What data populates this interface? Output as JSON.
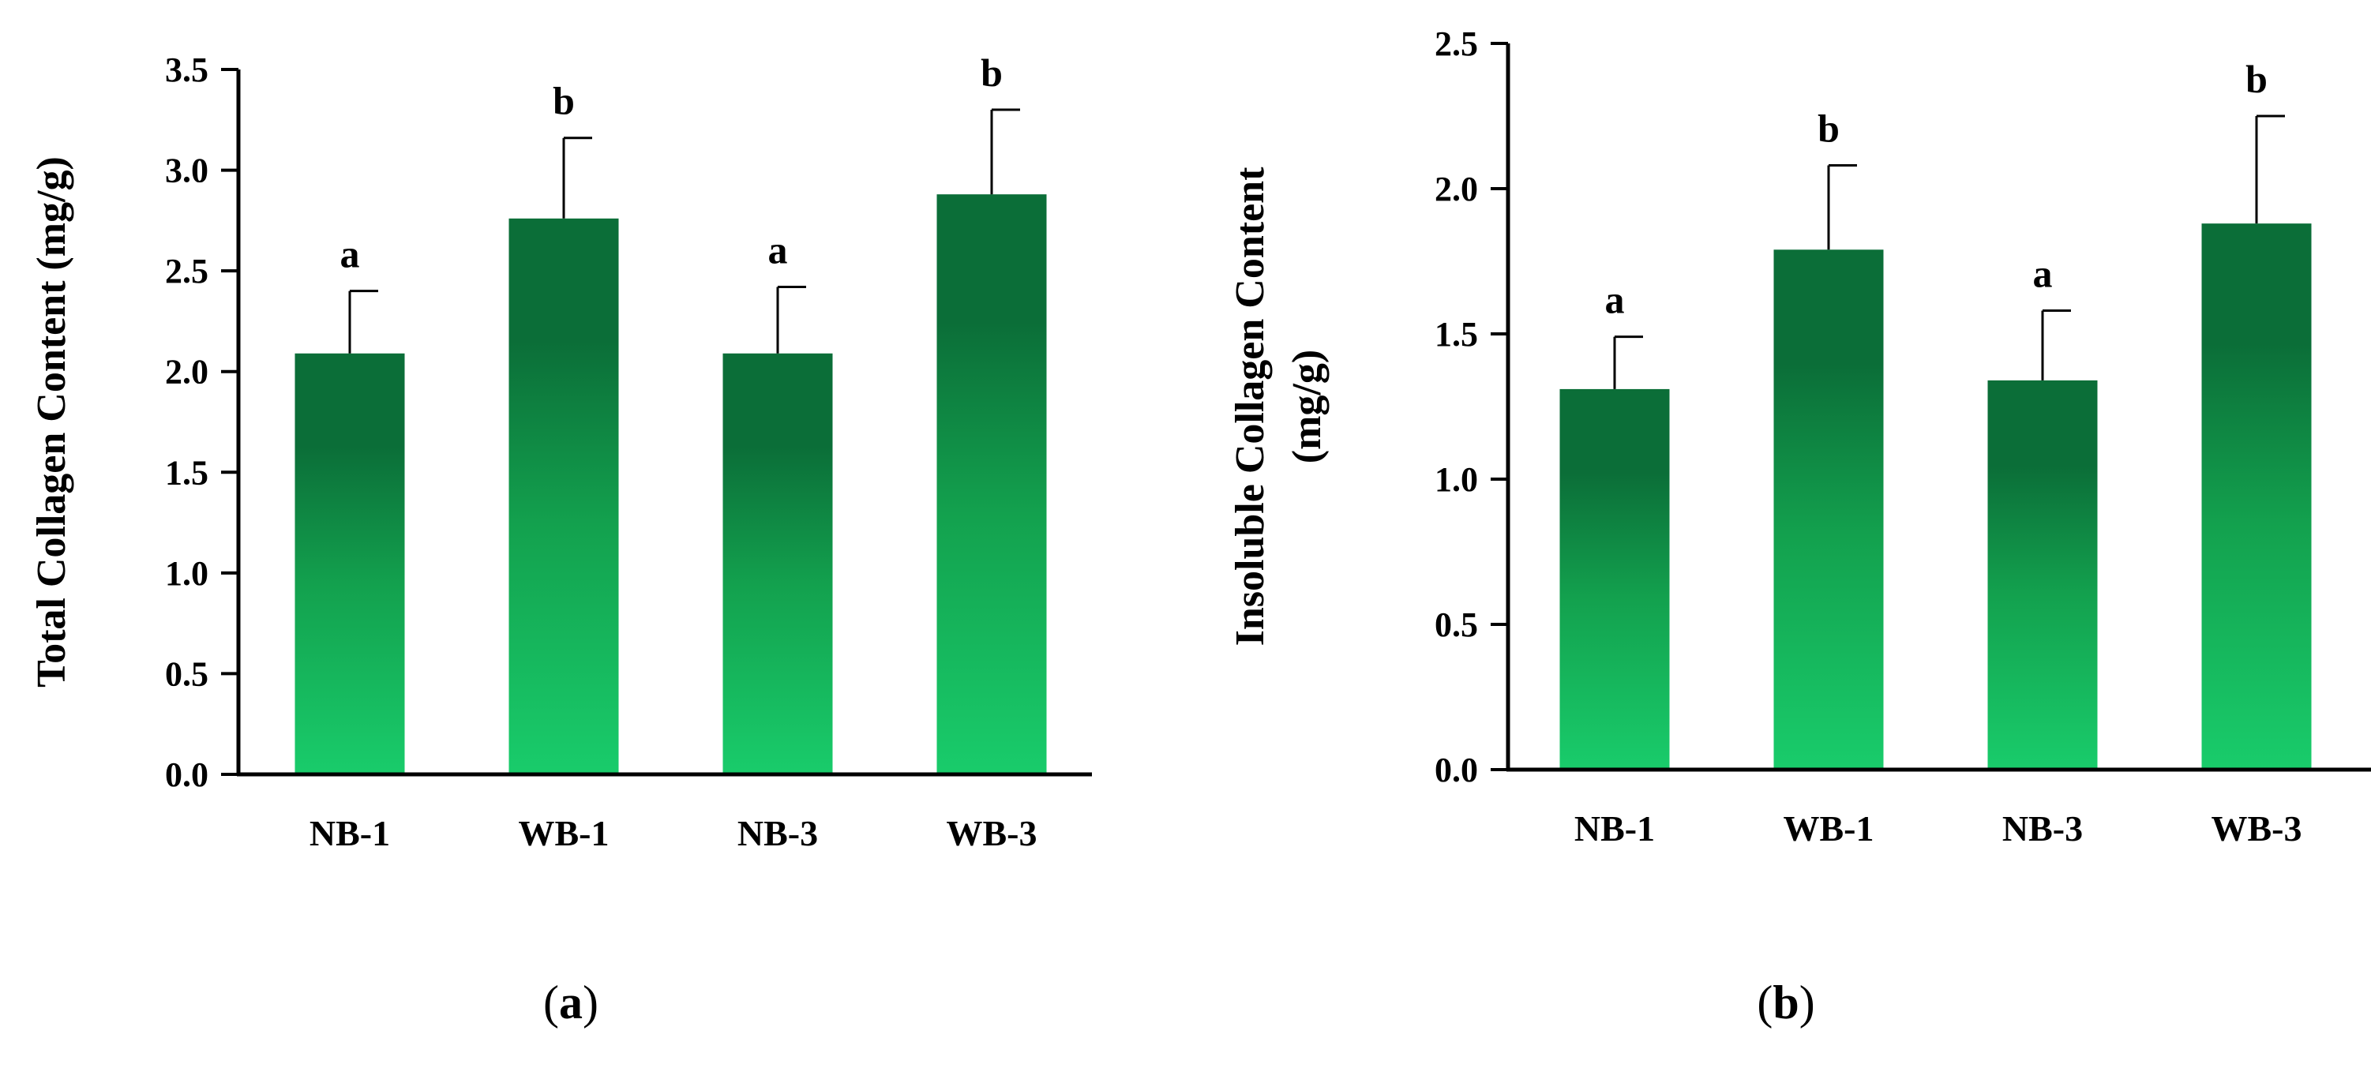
{
  "colors": {
    "bar_top": "#0b6e38",
    "bar_mid": "#13a14e",
    "bar_bottom": "#19cc6b",
    "axis": "#000000"
  },
  "chart_data": [
    {
      "type": "bar",
      "panel": "(a)",
      "panel_letter": "a",
      "categories": [
        "NB-1",
        "WB-1",
        "NB-3",
        "WB-3"
      ],
      "values": [
        2.09,
        2.76,
        2.09,
        2.88
      ],
      "errors": [
        0.31,
        0.4,
        0.33,
        0.42
      ],
      "significance": [
        "a",
        "b",
        "a",
        "b"
      ],
      "ylabel": "Total Collagen Content (mg/g)",
      "ylabel_lines": [
        "Total Collagen Content (mg/g)"
      ],
      "ylim": [
        0,
        3.5
      ],
      "yticks": [
        "0.0",
        "0.5",
        "1.0",
        "1.5",
        "2.0",
        "2.5",
        "3.0",
        "3.5"
      ],
      "grid": false
    },
    {
      "type": "bar",
      "panel": "(b)",
      "panel_letter": "b",
      "categories": [
        "NB-1",
        "WB-1",
        "NB-3",
        "WB-3"
      ],
      "values": [
        1.31,
        1.79,
        1.34,
        1.88
      ],
      "errors": [
        0.18,
        0.29,
        0.24,
        0.37
      ],
      "significance": [
        "a",
        "b",
        "a",
        "b"
      ],
      "ylabel": "Insoluble Collagen Content (mg/g)",
      "ylabel_lines": [
        "Insoluble Collagen Content",
        "(mg/g)"
      ],
      "ylim": [
        0,
        2.5
      ],
      "yticks": [
        "0.0",
        "0.5",
        "1.0",
        "1.5",
        "2.0",
        "2.5"
      ],
      "grid": false
    }
  ]
}
